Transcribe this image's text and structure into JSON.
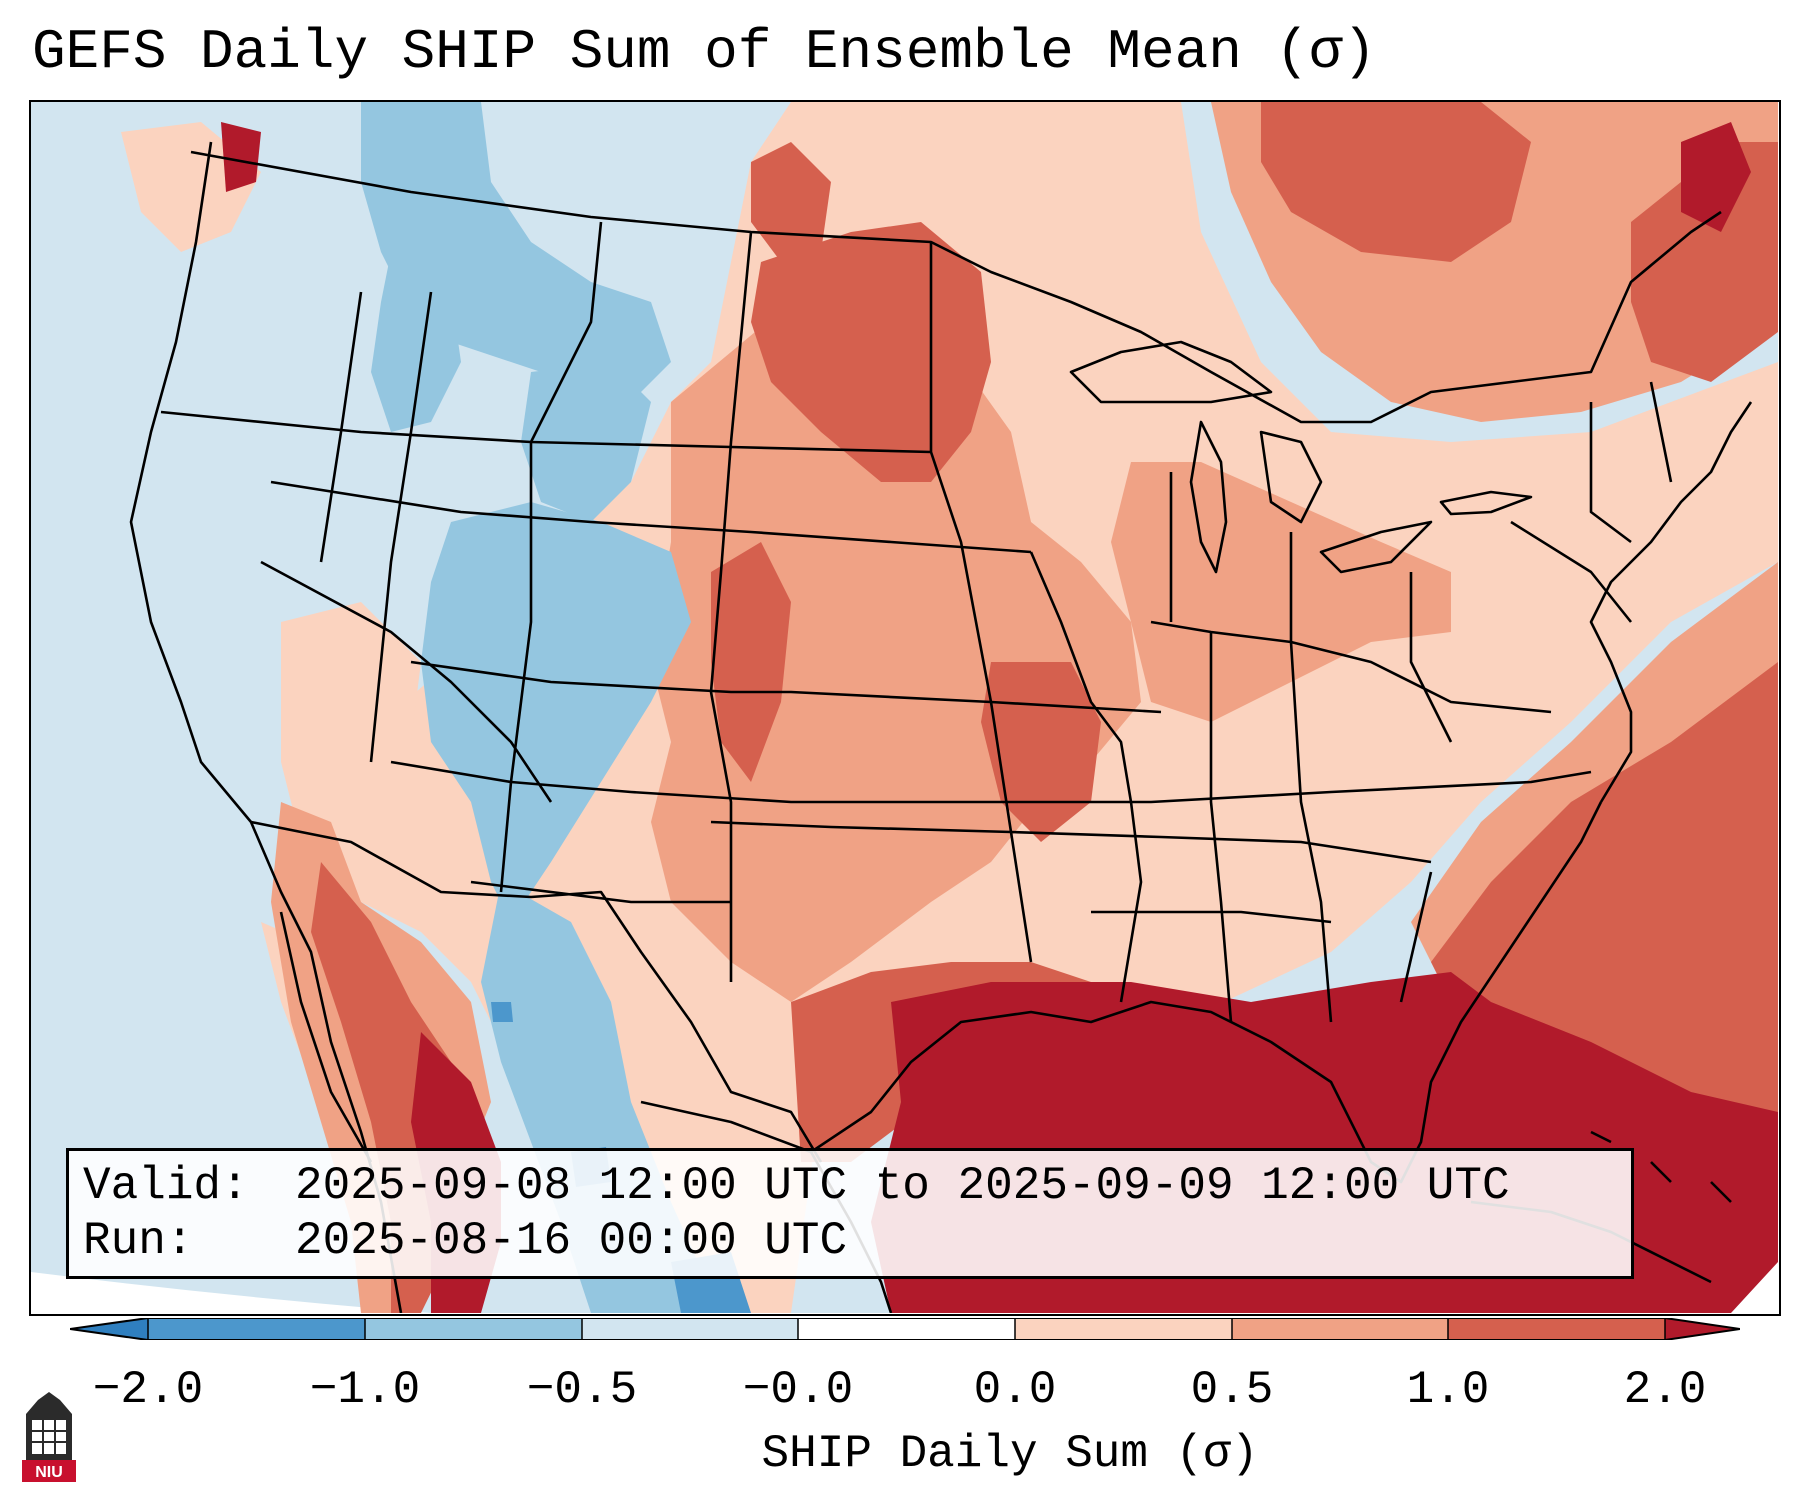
{
  "title": "GEFS Daily SHIP Sum of Ensemble Mean (σ)",
  "info": {
    "valid_label": "Valid:",
    "valid_value": "2025-09-08 12:00 UTC to 2025-09-09 12:00 UTC",
    "run_label": "Run:",
    "run_value": "2025-08-16 00:00 UTC"
  },
  "colorbar": {
    "label": "SHIP Daily Sum (σ)",
    "ticks": [
      "−2.0",
      "−1.0",
      "−0.5",
      "−0.0",
      "0.0",
      "0.5",
      "1.0",
      "2.0"
    ],
    "colors": [
      "#2f7fbf",
      "#4c97cc",
      "#94c6e0",
      "#d2e5f0",
      "#ffffff",
      "#fbd3bf",
      "#f0a285",
      "#d5604e",
      "#b11a2b"
    ]
  },
  "map": {
    "region": "Contiguous United States",
    "colors": {
      "ocean_fill": "#d2e5f0",
      "strong_blue": "#94c6e0",
      "deep_blue": "#4c97cc",
      "light_red": "#fbd3bf",
      "mid_red": "#f0a285",
      "red": "#d5604e",
      "dark_red": "#b11a2b"
    }
  },
  "logo": {
    "text": "NIU"
  }
}
